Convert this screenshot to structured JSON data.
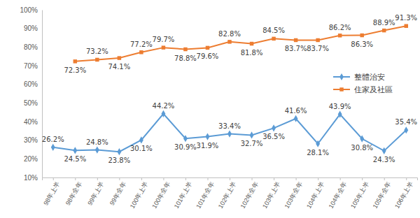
{
  "chart_data": {
    "type": "line",
    "categories": [
      "98年上半",
      "98年全年",
      "99年上半",
      "99年全年",
      "100年上半",
      "100年全年",
      "101年上半",
      "101年全年",
      "102年上半",
      "102年全年",
      "103年上半",
      "103年全年",
      "104年上半",
      "104年全年",
      "105年上半",
      "105年全年",
      "106年上半"
    ],
    "series": [
      {
        "name": "整體治安",
        "color": "#5b9bd5",
        "marker": "diamond",
        "line_style": "solid",
        "values": [
          26.2,
          24.5,
          24.8,
          23.8,
          30.1,
          44.2,
          30.9,
          31.9,
          33.4,
          32.7,
          36.5,
          41.6,
          28.1,
          43.9,
          30.8,
          24.3,
          35.4
        ],
        "value_labels": [
          "26.2%",
          "24.5%",
          "24.8%",
          "23.8%",
          "30.1%",
          "44.2%",
          "30.9%",
          "31.9%",
          "33.4%",
          "32.7%",
          "36.5%",
          "41.6%",
          "28.1%",
          "43.9%",
          "30.8%",
          "24.3%",
          "35.4%"
        ]
      },
      {
        "name": "住家及社區",
        "color": "#ed7d31",
        "marker": "square",
        "line_style": "solid",
        "values": [
          null,
          72.3,
          73.2,
          74.1,
          77.2,
          79.7,
          78.8,
          79.6,
          82.8,
          81.8,
          84.5,
          83.7,
          83.7,
          86.2,
          86.3,
          88.9,
          91.3
        ],
        "value_labels": [
          null,
          "72.3%",
          "73.2%",
          "74.1%",
          "77.2%",
          "79.7%",
          "78.8%",
          "79.6%",
          "82.8%",
          "81.8%",
          "84.5%",
          "83.7%",
          "83.7%",
          "86.2%",
          "86.3%",
          "88.9%",
          "91.3%"
        ]
      }
    ],
    "ylim": [
      10,
      100
    ],
    "yticks": [
      {
        "value": 10,
        "label": "10%"
      },
      {
        "value": 20,
        "label": "20%"
      },
      {
        "value": 30,
        "label": "30%"
      },
      {
        "value": 40,
        "label": "40%"
      },
      {
        "value": 50,
        "label": "50%"
      },
      {
        "value": 60,
        "label": "60%"
      },
      {
        "value": 70,
        "label": "70%"
      },
      {
        "value": 80,
        "label": "80%"
      },
      {
        "value": 90,
        "label": "90%"
      },
      {
        "value": 100,
        "label": "100%"
      }
    ],
    "grid": false,
    "legend": "right",
    "data_labels": true
  }
}
